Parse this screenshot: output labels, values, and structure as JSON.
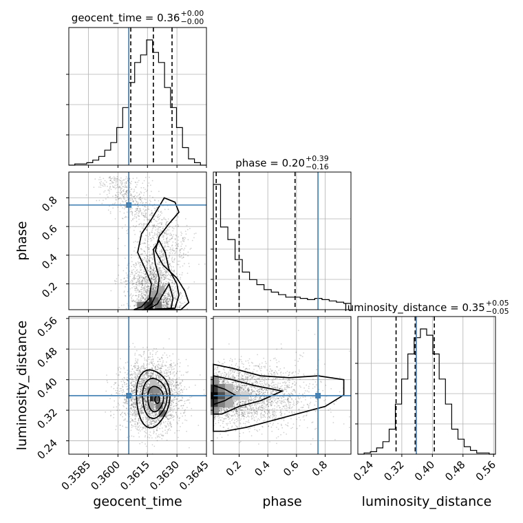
{
  "chart_data": {
    "type": "corner",
    "parameters": [
      "geocent_time",
      "phase",
      "luminosity_distance"
    ],
    "titles": [
      {
        "text": "geocent_time = 0.36",
        "sup": "+0.00",
        "sub": "−0.00"
      },
      {
        "text": "phase = 0.20",
        "sup": "+0.39",
        "sub": "−0.16"
      },
      {
        "text": "luminosity_distance = 0.35",
        "sup": "+0.05",
        "sub": "−0.05"
      }
    ],
    "ranges": {
      "geocent_time": [
        0.3575,
        0.3645
      ],
      "phase": [
        0.02,
        0.98
      ],
      "luminosity_distance": [
        0.205,
        0.565
      ]
    },
    "ticks": {
      "geocent_time": {
        "values": [
          0.3585,
          0.36,
          0.3615,
          0.363,
          0.3645
        ],
        "labels": [
          "0.3585",
          "0.3600",
          "0.3615",
          "0.3630",
          "0.3645"
        ]
      },
      "phase": {
        "values": [
          0.2,
          0.4,
          0.6,
          0.8
        ],
        "labels": [
          "0.2",
          "0.4",
          "0.6",
          "0.8"
        ]
      },
      "luminosity_distance": {
        "values": [
          0.24,
          0.32,
          0.4,
          0.48,
          0.56
        ],
        "labels": [
          "0.24",
          "0.32",
          "0.40",
          "0.48",
          "0.56"
        ]
      }
    },
    "truths": {
      "geocent_time": 0.36055,
      "phase": 0.75,
      "luminosity_distance": 0.358
    },
    "quantiles": {
      "geocent_time": [
        0.36065,
        0.3618,
        0.36275
      ],
      "phase": [
        0.04,
        0.2,
        0.59
      ],
      "luminosity_distance": [
        0.305,
        0.355,
        0.405
      ]
    },
    "histograms": {
      "geocent_time": [
        0,
        1,
        1,
        2,
        4,
        7,
        12,
        18,
        30,
        46,
        66,
        82,
        88,
        100,
        90,
        82,
        62,
        46,
        30,
        14,
        5,
        2,
        0
      ],
      "phase": [
        100,
        66,
        56,
        40,
        30,
        24,
        20,
        16,
        14,
        12,
        10,
        10,
        9,
        8,
        9,
        8,
        7,
        6,
        5
      ],
      "luminosity_distance": [
        0,
        1,
        2,
        5,
        10,
        20,
        40,
        60,
        80,
        93,
        100,
        95,
        80,
        60,
        40,
        20,
        12,
        6,
        3,
        1,
        1,
        0
      ]
    },
    "grid": true,
    "truth_color": "#4682b4",
    "density_color": "#000000"
  }
}
